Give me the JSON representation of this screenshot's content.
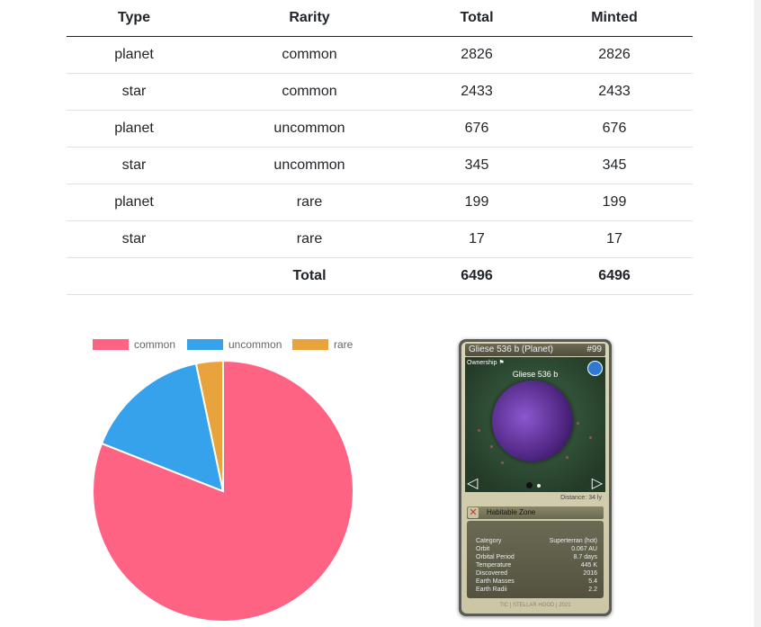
{
  "table": {
    "headers": [
      "Type",
      "Rarity",
      "Total",
      "Minted"
    ],
    "rows": [
      [
        "planet",
        "common",
        "2826",
        "2826"
      ],
      [
        "star",
        "common",
        "2433",
        "2433"
      ],
      [
        "planet",
        "uncommon",
        "676",
        "676"
      ],
      [
        "star",
        "uncommon",
        "345",
        "345"
      ],
      [
        "planet",
        "rare",
        "199",
        "199"
      ],
      [
        "star",
        "rare",
        "17",
        "17"
      ]
    ],
    "total": {
      "label": "Total",
      "total": "6496",
      "minted": "6496"
    }
  },
  "chart_data": {
    "type": "pie",
    "labels": [
      "common",
      "uncommon",
      "rare"
    ],
    "values": [
      5259,
      1021,
      216
    ],
    "colors": [
      "#ff6384",
      "#36a2eb",
      "#e8a33d"
    ],
    "legend": "top"
  },
  "card": {
    "title": "Gliese 536 b (Planet)",
    "number": "#99",
    "ownership": "Ownership",
    "planet_name": "Gliese 536 b",
    "distance": "Distance: 34 ly",
    "habitable_zone": "Habitable Zone",
    "stats": [
      {
        "k": "Category",
        "v": "Superterran (hot)"
      },
      {
        "k": "Orbit",
        "v": "0.067 AU"
      },
      {
        "k": "Orbital Period",
        "v": "8.7 days"
      },
      {
        "k": "Temperature",
        "v": "445 K"
      },
      {
        "k": "Discovered",
        "v": "2016"
      },
      {
        "k": "Earth Masses",
        "v": "5.4"
      },
      {
        "k": "Earth Radii",
        "v": "2.2"
      }
    ],
    "footer": "TIC | STELLAR HOOD | 2021"
  }
}
